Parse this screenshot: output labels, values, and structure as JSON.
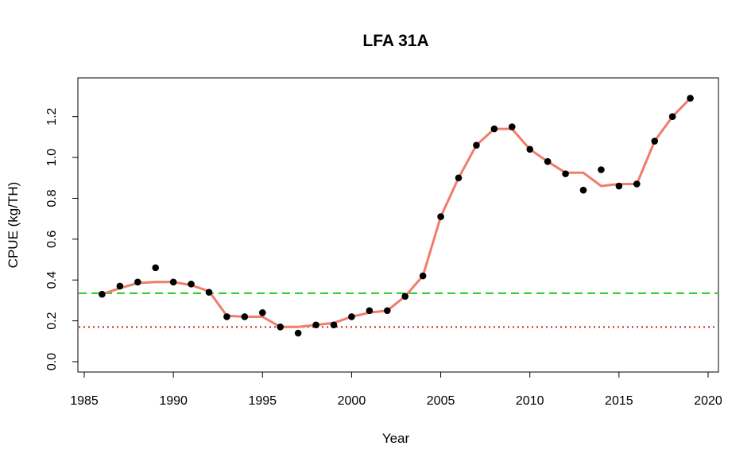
{
  "chart_data": {
    "type": "scatter",
    "title": "LFA 31A",
    "xlabel": "Year",
    "ylabel": "CPUE (kg/TH)",
    "xlim": [
      1985,
      2020
    ],
    "ylim": [
      0.0,
      1.3
    ],
    "xticks": [
      "1985",
      "1990",
      "1995",
      "2000",
      "2005",
      "2010",
      "2015",
      "2020"
    ],
    "yticks": [
      "0.0",
      "0.2",
      "0.4",
      "0.6",
      "0.8",
      "1.0",
      "1.2"
    ],
    "grid": false,
    "legend": "none",
    "series": [
      {
        "kind": "points",
        "color": "#000000",
        "x": [
          1986,
          1987,
          1988,
          1989,
          1990,
          1991,
          1992,
          1993,
          1994,
          1995,
          1996,
          1997,
          1998,
          1999,
          2000,
          2001,
          2002,
          2003,
          2004,
          2005,
          2006,
          2007,
          2008,
          2009,
          2010,
          2011,
          2012,
          2013,
          2014,
          2015,
          2016,
          2017,
          2018,
          2019
        ],
        "y": [
          0.33,
          0.37,
          0.39,
          0.46,
          0.39,
          0.38,
          0.34,
          0.22,
          0.22,
          0.24,
          0.17,
          0.14,
          0.18,
          0.18,
          0.22,
          0.25,
          0.25,
          0.32,
          0.42,
          0.71,
          0.9,
          1.06,
          1.14,
          1.15,
          1.04,
          0.98,
          0.92,
          0.84,
          0.94,
          0.86,
          0.87,
          1.08,
          1.2,
          1.29
        ]
      },
      {
        "kind": "line",
        "color": "#f07c6c",
        "x": [
          1986,
          1987,
          1988,
          1989,
          1990,
          1991,
          1992,
          1993,
          1994,
          1995,
          1996,
          1997,
          1998,
          1999,
          2000,
          2001,
          2002,
          2003,
          2004,
          2005,
          2006,
          2007,
          2008,
          2009,
          2010,
          2011,
          2012,
          2013,
          2014,
          2015,
          2016,
          2017,
          2018,
          2019
        ],
        "y": [
          0.33,
          0.36,
          0.385,
          0.39,
          0.39,
          0.375,
          0.345,
          0.225,
          0.22,
          0.22,
          0.17,
          0.17,
          0.18,
          0.19,
          0.22,
          0.24,
          0.25,
          0.32,
          0.42,
          0.71,
          0.9,
          1.06,
          1.14,
          1.14,
          1.04,
          0.98,
          0.925,
          0.925,
          0.86,
          0.87,
          0.87,
          1.08,
          1.2,
          1.29
        ]
      }
    ],
    "reference_lines": [
      {
        "y": 0.335,
        "color": "#22cc22",
        "style": "dashed"
      },
      {
        "y": 0.17,
        "color": "#cc2222",
        "style": "dotted"
      }
    ]
  }
}
